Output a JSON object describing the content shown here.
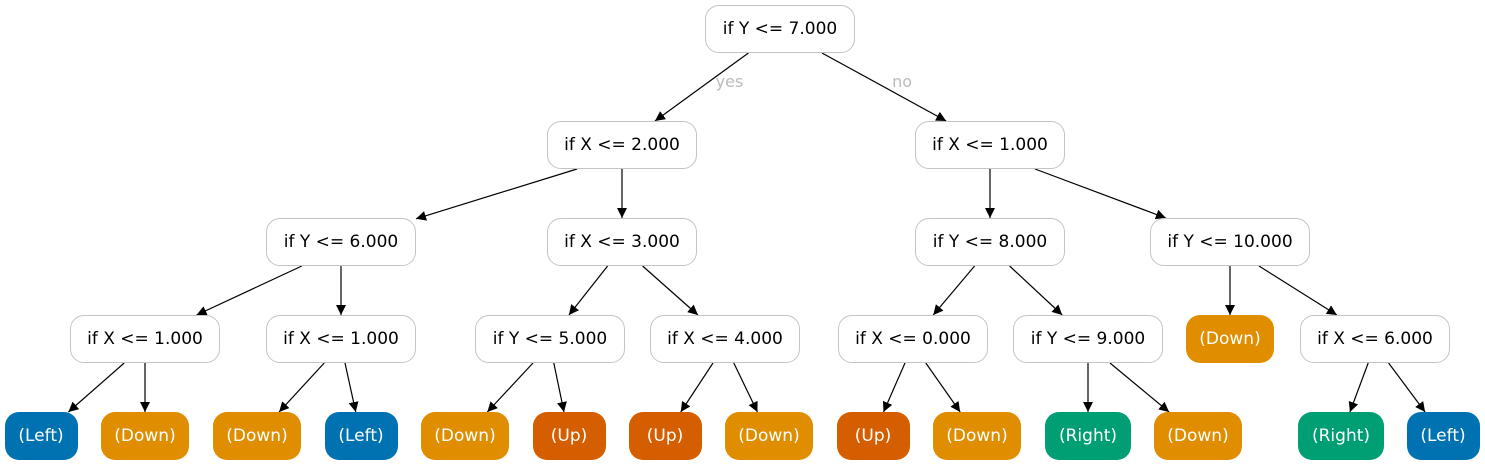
{
  "colors": {
    "Left": "#0072b2",
    "Down": "#e08e00",
    "Up": "#d55e00",
    "Right": "#009e73",
    "edge": "#000000",
    "border": "#c4c4c4",
    "edge_label": "#bbbbbb"
  },
  "edge_labels": {
    "yes": "yes",
    "no": "no"
  },
  "nodes": [
    {
      "id": "n0",
      "label": "if Y <= 7.000",
      "type": "split"
    },
    {
      "id": "n1",
      "label": "if X <= 2.000",
      "type": "split"
    },
    {
      "id": "n2",
      "label": "if X <= 1.000",
      "type": "split"
    },
    {
      "id": "n3",
      "label": "if Y <= 6.000",
      "type": "split"
    },
    {
      "id": "n4",
      "label": "if X <= 3.000",
      "type": "split"
    },
    {
      "id": "n5",
      "label": "if Y <= 8.000",
      "type": "split"
    },
    {
      "id": "n6",
      "label": "if Y <= 10.000",
      "type": "split"
    },
    {
      "id": "n7",
      "label": "if X <= 1.000",
      "type": "split"
    },
    {
      "id": "n8",
      "label": "if X <= 1.000",
      "type": "split"
    },
    {
      "id": "n9",
      "label": "if Y <= 5.000",
      "type": "split"
    },
    {
      "id": "n10",
      "label": "if X <= 4.000",
      "type": "split"
    },
    {
      "id": "n11",
      "label": "if X <= 0.000",
      "type": "split"
    },
    {
      "id": "n12",
      "label": "if Y <= 9.000",
      "type": "split"
    },
    {
      "id": "n13",
      "label": "(Down)",
      "type": "leaf",
      "cls": "Down"
    },
    {
      "id": "n14",
      "label": "if X <= 6.000",
      "type": "split"
    },
    {
      "id": "n15",
      "label": "(Left)",
      "type": "leaf",
      "cls": "Left"
    },
    {
      "id": "n16",
      "label": "(Down)",
      "type": "leaf",
      "cls": "Down"
    },
    {
      "id": "n17",
      "label": "(Down)",
      "type": "leaf",
      "cls": "Down"
    },
    {
      "id": "n18",
      "label": "(Left)",
      "type": "leaf",
      "cls": "Left"
    },
    {
      "id": "n19",
      "label": "(Down)",
      "type": "leaf",
      "cls": "Down"
    },
    {
      "id": "n20",
      "label": "(Up)",
      "type": "leaf",
      "cls": "Up"
    },
    {
      "id": "n21",
      "label": "(Up)",
      "type": "leaf",
      "cls": "Up"
    },
    {
      "id": "n22",
      "label": "(Down)",
      "type": "leaf",
      "cls": "Down"
    },
    {
      "id": "n23",
      "label": "(Up)",
      "type": "leaf",
      "cls": "Up"
    },
    {
      "id": "n24",
      "label": "(Down)",
      "type": "leaf",
      "cls": "Down"
    },
    {
      "id": "n25",
      "label": "(Right)",
      "type": "leaf",
      "cls": "Right"
    },
    {
      "id": "n26",
      "label": "(Down)",
      "type": "leaf",
      "cls": "Down"
    },
    {
      "id": "n27",
      "label": "(Right)",
      "type": "leaf",
      "cls": "Right"
    },
    {
      "id": "n28",
      "label": "(Left)",
      "type": "leaf",
      "cls": "Left"
    }
  ],
  "edges": [
    {
      "from": "n0",
      "to": "n1",
      "label": "yes"
    },
    {
      "from": "n0",
      "to": "n2",
      "label": "no"
    },
    {
      "from": "n1",
      "to": "n3"
    },
    {
      "from": "n1",
      "to": "n4"
    },
    {
      "from": "n2",
      "to": "n5"
    },
    {
      "from": "n2",
      "to": "n6"
    },
    {
      "from": "n3",
      "to": "n7"
    },
    {
      "from": "n3",
      "to": "n8"
    },
    {
      "from": "n4",
      "to": "n9"
    },
    {
      "from": "n4",
      "to": "n10"
    },
    {
      "from": "n5",
      "to": "n11"
    },
    {
      "from": "n5",
      "to": "n12"
    },
    {
      "from": "n6",
      "to": "n13"
    },
    {
      "from": "n6",
      "to": "n14"
    },
    {
      "from": "n7",
      "to": "n15"
    },
    {
      "from": "n7",
      "to": "n16"
    },
    {
      "from": "n8",
      "to": "n17"
    },
    {
      "from": "n8",
      "to": "n18"
    },
    {
      "from": "n9",
      "to": "n19"
    },
    {
      "from": "n9",
      "to": "n20"
    },
    {
      "from": "n10",
      "to": "n21"
    },
    {
      "from": "n10",
      "to": "n22"
    },
    {
      "from": "n11",
      "to": "n23"
    },
    {
      "from": "n11",
      "to": "n24"
    },
    {
      "from": "n12",
      "to": "n25"
    },
    {
      "from": "n12",
      "to": "n26"
    },
    {
      "from": "n14",
      "to": "n27"
    },
    {
      "from": "n14",
      "to": "n28"
    }
  ]
}
